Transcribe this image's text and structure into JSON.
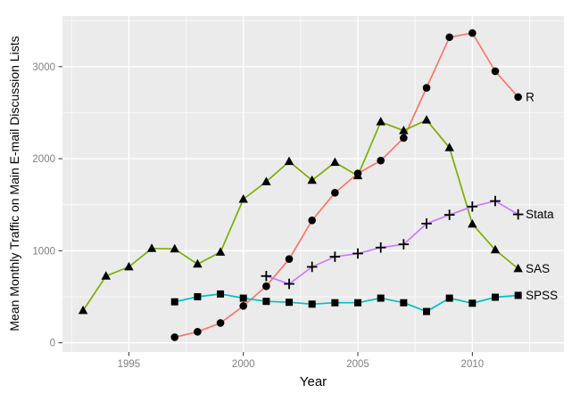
{
  "chart_data": {
    "type": "line",
    "title": "",
    "xlabel": "Year",
    "ylabel": "Mean Monthly Traffic on Main E-mail Discussion Lists",
    "xlim": [
      1992.1,
      2014.0
    ],
    "ylim": [
      -100,
      3550
    ],
    "x_ticks": [
      1995,
      2000,
      2005,
      2010
    ],
    "y_ticks": [
      0,
      1000,
      2000,
      3000
    ],
    "x_minor_ticks": [
      1992.5,
      1997.5,
      2002.5,
      2007.5,
      2012.5
    ],
    "y_minor_ticks": [
      500,
      1500,
      2500,
      3500
    ],
    "grid": true,
    "legend_position": "direct-labels-at-line-end",
    "panel_background": "#EBEBEB",
    "grid_color": "#FFFFFF",
    "tick_mark_color": "#333333",
    "tick_label_color": "#808080",
    "marker_color": "#000000",
    "series": [
      {
        "name": "R",
        "color": "#F8766D",
        "marker": "circle",
        "x": [
          1997,
          1998,
          1999,
          2000,
          2001,
          2002,
          2003,
          2004,
          2005,
          2006,
          2007,
          2008,
          2009,
          2010,
          2011,
          2012
        ],
        "values": [
          60,
          120,
          215,
          400,
          615,
          910,
          1330,
          1630,
          1840,
          1980,
          2225,
          2770,
          3320,
          3365,
          2950,
          2670
        ]
      },
      {
        "name": "SAS",
        "color": "#7CAE00",
        "marker": "triangle",
        "x": [
          1993,
          1994,
          1995,
          1996,
          1997,
          1998,
          1999,
          2000,
          2001,
          2002,
          2003,
          2004,
          2005,
          2006,
          2007,
          2008,
          2009,
          2010,
          2011,
          2012
        ],
        "values": [
          350,
          725,
          825,
          1025,
          1020,
          855,
          985,
          1560,
          1750,
          1970,
          1765,
          1960,
          1815,
          2400,
          2305,
          2420,
          2120,
          1290,
          1010,
          805
        ]
      },
      {
        "name": "SPSS",
        "color": "#00BFC4",
        "marker": "square",
        "x": [
          1997,
          1998,
          1999,
          2000,
          2001,
          2002,
          2003,
          2004,
          2005,
          2006,
          2007,
          2008,
          2009,
          2010,
          2011,
          2012
        ],
        "values": [
          445,
          500,
          530,
          485,
          450,
          440,
          420,
          435,
          435,
          485,
          435,
          340,
          485,
          430,
          495,
          515
        ]
      },
      {
        "name": "Stata",
        "color": "#C77CFF",
        "marker": "plus",
        "x": [
          2001,
          2002,
          2003,
          2004,
          2005,
          2006,
          2007,
          2008,
          2009,
          2010,
          2011,
          2012
        ],
        "values": [
          725,
          640,
          825,
          935,
          970,
          1035,
          1070,
          1295,
          1390,
          1480,
          1540,
          1395
        ]
      }
    ]
  }
}
